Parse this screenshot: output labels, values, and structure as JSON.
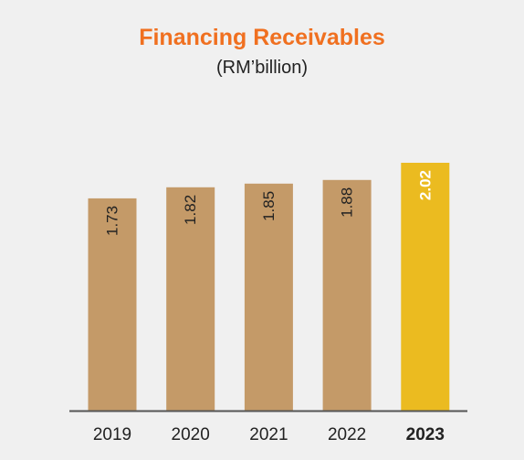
{
  "chart_data": {
    "type": "bar",
    "title": "Financing Receivables",
    "subtitle": "(RM’billion)",
    "categories": [
      "2019",
      "2020",
      "2021",
      "2022",
      "2023"
    ],
    "values": [
      1.73,
      1.82,
      1.85,
      1.88,
      2.02
    ],
    "value_labels": [
      "1.73",
      "1.82",
      "1.85",
      "1.88",
      "2.02"
    ],
    "highlight_index": 4,
    "ylim": [
      0,
      2.02
    ],
    "grid": false,
    "xlabel": "",
    "ylabel": "",
    "label_orientation": "vertical",
    "colors": {
      "background": "#f0f0f0",
      "title": "#f07020",
      "bar": "#c49a68",
      "highlight_bar": "#ebbb20",
      "baseline": "#555555",
      "label_dark": "#222222",
      "label_light": "#ffffff",
      "tick_text": "#222222"
    }
  }
}
